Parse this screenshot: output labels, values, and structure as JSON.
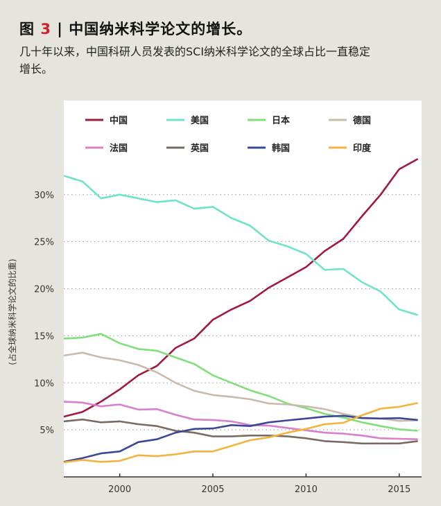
{
  "header": {
    "title_prefix": "图",
    "title_number": "3",
    "title_text": "| 中国纳米科学论文的增长。",
    "subtitle": "几十年以来，中国科研人员发表的SCI纳米科学论文的全球占比一直稳定增长。"
  },
  "chart_data": {
    "type": "line",
    "title": "",
    "xlabel": "",
    "ylabel": "(占全球纳米科学论文的比重)",
    "xlim": [
      1997,
      2016.2
    ],
    "ylim": [
      0,
      40
    ],
    "x_ticks": [
      2000,
      2005,
      2010,
      2015
    ],
    "x_tick_labels": [
      "2000",
      "2005",
      "2010",
      "2015"
    ],
    "y_ticks": [
      5,
      10,
      15,
      20,
      25,
      30
    ],
    "y_tick_labels": [
      "5%",
      "10%",
      "15%",
      "20%",
      "25%",
      "30%"
    ],
    "grid": "horizontal dotted",
    "legend_placement": "top",
    "x": [
      1997,
      1998,
      1999,
      2000,
      2001,
      2002,
      2003,
      2004,
      2005,
      2006,
      2007,
      2008,
      2009,
      2010,
      2011,
      2012,
      2013,
      2014,
      2015,
      2016
    ],
    "series": [
      {
        "name": "中国",
        "color": "#a3183e",
        "values": [
          6.4,
          6.9,
          8.0,
          9.3,
          10.8,
          11.8,
          13.7,
          14.7,
          16.7,
          17.8,
          18.7,
          20.1,
          21.2,
          22.3,
          24.0,
          25.3,
          27.7,
          30.0,
          32.7,
          33.8
        ]
      },
      {
        "name": "美国",
        "color": "#6fe3c9",
        "values": [
          32.0,
          31.4,
          29.6,
          30.0,
          29.6,
          29.2,
          29.4,
          28.5,
          28.7,
          27.5,
          26.7,
          25.1,
          24.5,
          23.7,
          22.0,
          22.1,
          20.7,
          19.7,
          17.8,
          17.2
        ]
      },
      {
        "name": "日本",
        "color": "#7fe07a",
        "values": [
          14.7,
          14.8,
          15.2,
          14.2,
          13.6,
          13.4,
          12.7,
          12.0,
          10.8,
          10.0,
          9.2,
          8.6,
          7.8,
          7.3,
          6.7,
          6.3,
          5.8,
          5.4,
          5.05,
          4.9
        ]
      },
      {
        "name": "德国",
        "color": "#c9bba9",
        "values": [
          12.9,
          13.2,
          12.7,
          12.4,
          11.9,
          11.1,
          10.0,
          9.15,
          8.7,
          8.5,
          8.25,
          7.8,
          7.7,
          7.5,
          7.2,
          6.7,
          6.3,
          6.2,
          5.95,
          6.0
        ]
      },
      {
        "name": "法国",
        "color": "#d880cf",
        "values": [
          8.0,
          7.9,
          7.5,
          7.7,
          7.15,
          7.2,
          6.6,
          6.1,
          6.05,
          5.9,
          5.5,
          5.45,
          5.2,
          4.95,
          4.7,
          4.6,
          4.4,
          4.1,
          4.05,
          4.0
        ]
      },
      {
        "name": "英国",
        "color": "#7a6b62",
        "values": [
          5.9,
          6.1,
          5.8,
          5.9,
          5.6,
          5.4,
          4.9,
          4.7,
          4.3,
          4.3,
          4.4,
          4.4,
          4.3,
          4.1,
          3.8,
          3.7,
          3.55,
          3.55,
          3.55,
          3.8
        ]
      },
      {
        "name": "韩国",
        "color": "#3b4697",
        "values": [
          1.6,
          2.0,
          2.5,
          2.7,
          3.7,
          4.0,
          4.7,
          5.1,
          5.15,
          5.5,
          5.4,
          5.8,
          6.0,
          6.2,
          6.4,
          6.5,
          6.25,
          6.2,
          6.25,
          6.05
        ]
      },
      {
        "name": "印度",
        "color": "#f2b43f",
        "values": [
          1.55,
          1.8,
          1.6,
          1.7,
          2.3,
          2.2,
          2.4,
          2.7,
          2.7,
          3.3,
          3.9,
          4.2,
          4.7,
          5.1,
          5.6,
          5.75,
          6.55,
          7.25,
          7.45,
          7.85
        ]
      }
    ]
  }
}
